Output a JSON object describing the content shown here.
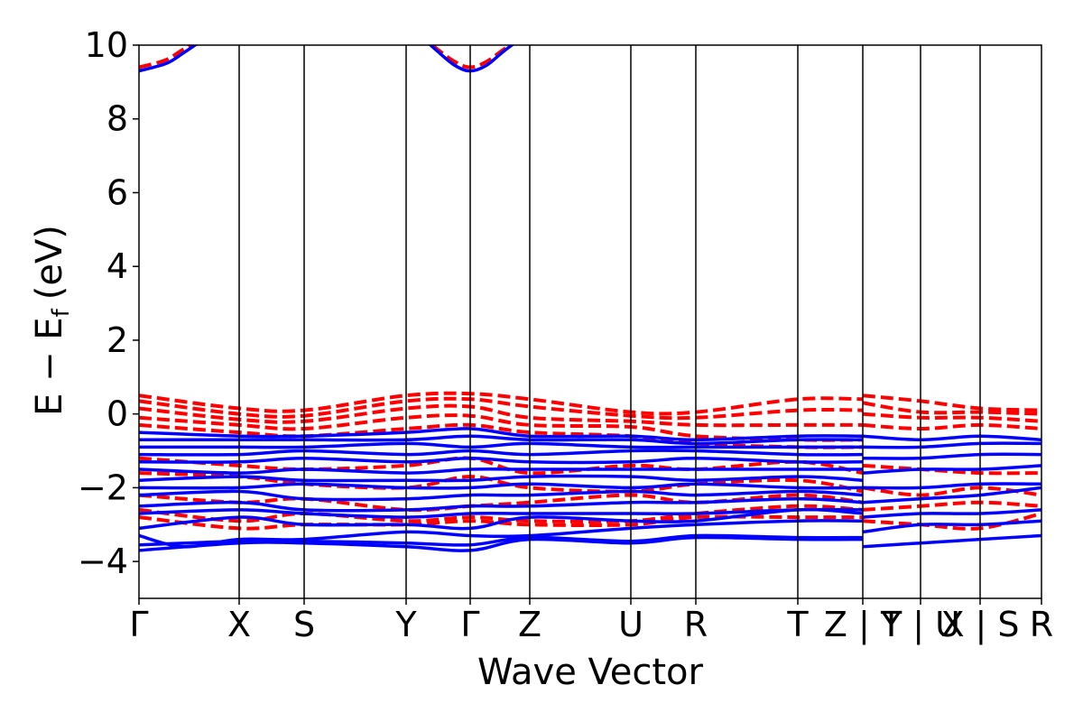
{
  "chart_data": {
    "type": "line",
    "title": "",
    "xlabel": "Wave Vector",
    "ylabel": "E − E",
    "ylabel_subscript": "f",
    "ylabel_unit": "(eV)",
    "ylim": [
      -5,
      10
    ],
    "yticks": [
      -4,
      -2,
      0,
      2,
      4,
      6,
      8,
      10
    ],
    "ytick_labels": [
      "−4",
      "−2",
      "0",
      "2",
      "4",
      "6",
      "8",
      "10"
    ],
    "xlim": [
      0,
      10
    ],
    "kpath": [
      {
        "label": "Γ",
        "x": 0.0
      },
      {
        "label": "X",
        "x": 1.11
      },
      {
        "label": "S",
        "x": 1.83
      },
      {
        "label": "Y",
        "x": 2.96
      },
      {
        "label": "Γ",
        "x": 3.67
      },
      {
        "label": "Z",
        "x": 4.33
      },
      {
        "label": "U",
        "x": 5.45
      },
      {
        "label": "R",
        "x": 6.17
      },
      {
        "label": "T",
        "x": 7.3
      },
      {
        "label": "Z | Y",
        "x": 8.02
      },
      {
        "label": "T | U",
        "x": 8.66
      },
      {
        "label": "X | S",
        "x": 9.32
      },
      {
        "label": "R",
        "x": 10.0
      }
    ],
    "series": [
      {
        "name": "blue solid bands",
        "color": "#0000ff",
        "style": "solid",
        "bands": [
          {
            "x": [
              0,
              0.3,
              0.5,
              0.8
            ],
            "y": [
              9.3,
              9.5,
              9.8,
              10.3
            ]
          },
          {
            "x": [
              3.1,
              3.3,
              3.5,
              3.67,
              3.85,
              4.05,
              4.3
            ],
            "y": [
              10.3,
              9.85,
              9.45,
              9.3,
              9.45,
              9.85,
              10.3
            ]
          },
          {
            "x": [
              0,
              1.11,
              1.83,
              2.96,
              3.67,
              4.33,
              5.45,
              6.17,
              7.3,
              8.02
            ],
            "y": [
              -3.7,
              -3.5,
              -3.5,
              -3.6,
              -3.7,
              -3.4,
              -3.5,
              -3.35,
              -3.4,
              -3.4
            ]
          },
          {
            "x": [
              0,
              1.11,
              1.83,
              2.96,
              3.67,
              4.33,
              5.45,
              6.17,
              7.3,
              8.02
            ],
            "y": [
              -3.55,
              -3.45,
              -3.45,
              -3.5,
              -3.55,
              -3.35,
              -3.45,
              -3.3,
              -3.35,
              -3.35
            ]
          },
          {
            "x": [
              0,
              0.5,
              1.11,
              1.83,
              2.96,
              3.67,
              4.33,
              5.45,
              6.17,
              7.3,
              8.02
            ],
            "y": [
              -3.3,
              -3.6,
              -3.4,
              -3.4,
              -3.2,
              -3.3,
              -3.3,
              -3.1,
              -3.0,
              -2.9,
              -2.9
            ]
          },
          {
            "x": [
              0,
              1.11,
              1.83,
              2.96,
              3.67,
              4.33,
              5.45,
              6.17,
              7.3,
              8.02
            ],
            "y": [
              -3.1,
              -2.8,
              -3.0,
              -3.0,
              -3.1,
              -2.8,
              -2.9,
              -2.9,
              -2.6,
              -2.7
            ]
          },
          {
            "x": [
              0,
              1.11,
              1.83,
              2.96,
              3.67,
              4.33,
              5.45,
              6.17,
              7.3,
              8.02
            ],
            "y": [
              -2.7,
              -2.6,
              -2.7,
              -2.8,
              -2.7,
              -2.7,
              -2.7,
              -2.7,
              -2.6,
              -2.6
            ]
          },
          {
            "x": [
              0,
              1.11,
              1.83,
              2.96,
              3.67,
              4.33,
              5.45,
              6.17,
              7.3,
              8.02
            ],
            "y": [
              -2.5,
              -2.4,
              -2.6,
              -2.6,
              -2.5,
              -2.5,
              -2.4,
              -2.4,
              -2.3,
              -2.4
            ]
          },
          {
            "x": [
              0,
              1.11,
              1.83,
              2.96,
              3.67,
              4.33,
              5.45,
              6.17,
              7.3,
              8.02
            ],
            "y": [
              -2.2,
              -2.1,
              -2.3,
              -2.3,
              -2.2,
              -2.2,
              -2.1,
              -2.2,
              -2.1,
              -2.2
            ]
          },
          {
            "x": [
              0,
              1.11,
              1.83,
              2.96,
              3.67,
              4.33,
              5.45,
              6.17,
              7.3,
              8.02
            ],
            "y": [
              -2.0,
              -2.0,
              -1.9,
              -2.0,
              -2.0,
              -1.9,
              -2.0,
              -1.9,
              -2.0,
              -2.0
            ]
          },
          {
            "x": [
              0,
              1.11,
              1.83,
              2.96,
              3.67,
              4.33,
              5.45,
              6.17,
              7.3,
              8.02
            ],
            "y": [
              -1.8,
              -1.7,
              -1.8,
              -1.8,
              -1.8,
              -1.7,
              -1.7,
              -1.8,
              -1.7,
              -1.8
            ]
          },
          {
            "x": [
              0,
              1.11,
              1.83,
              2.96,
              3.67,
              4.33,
              5.45,
              6.17,
              7.3,
              8.02
            ],
            "y": [
              -1.5,
              -1.6,
              -1.5,
              -1.6,
              -1.5,
              -1.5,
              -1.5,
              -1.5,
              -1.5,
              -1.5
            ]
          },
          {
            "x": [
              0,
              1.11,
              1.83,
              2.96,
              3.67,
              4.33,
              5.45,
              6.17,
              7.3,
              8.02
            ],
            "y": [
              -1.3,
              -1.3,
              -1.2,
              -1.3,
              -1.2,
              -1.3,
              -1.3,
              -1.2,
              -1.3,
              -1.3
            ]
          },
          {
            "x": [
              0,
              1.11,
              1.83,
              2.96,
              3.67,
              4.33,
              5.45,
              6.17,
              7.3,
              8.02
            ],
            "y": [
              -1.1,
              -1.1,
              -1.0,
              -1.1,
              -1.0,
              -1.1,
              -1.0,
              -1.0,
              -1.1,
              -1.1
            ]
          },
          {
            "x": [
              0,
              1.11,
              1.83,
              2.96,
              3.67,
              4.33,
              5.45,
              6.17,
              7.3,
              8.02
            ],
            "y": [
              -0.9,
              -0.9,
              -0.9,
              -0.8,
              -0.9,
              -0.8,
              -0.9,
              -0.9,
              -0.9,
              -0.9
            ]
          },
          {
            "x": [
              0,
              1.11,
              1.83,
              2.96,
              3.67,
              4.33,
              5.45,
              6.17,
              7.3,
              8.02
            ],
            "y": [
              -0.7,
              -0.7,
              -0.7,
              -0.7,
              -0.6,
              -0.7,
              -0.7,
              -0.8,
              -0.7,
              -0.7
            ]
          },
          {
            "x": [
              0,
              1.11,
              1.83,
              2.96,
              3.67,
              4.33,
              5.45,
              6.17,
              7.3,
              8.02
            ],
            "y": [
              -0.5,
              -0.6,
              -0.6,
              -0.5,
              -0.4,
              -0.6,
              -0.6,
              -0.7,
              -0.6,
              -0.6
            ]
          },
          {
            "x": [
              8.02,
              8.66,
              9.32,
              10.0
            ],
            "y": [
              -3.6,
              -3.5,
              -3.4,
              -3.3
            ]
          },
          {
            "x": [
              8.02,
              8.66,
              9.32,
              10.0
            ],
            "y": [
              -3.2,
              -3.0,
              -3.0,
              -2.9
            ]
          },
          {
            "x": [
              8.02,
              8.66,
              9.32,
              10.0
            ],
            "y": [
              -2.8,
              -2.7,
              -2.7,
              -2.6
            ]
          },
          {
            "x": [
              8.02,
              8.66,
              9.32,
              10.0
            ],
            "y": [
              -2.4,
              -2.3,
              -2.2,
              -2.0
            ]
          },
          {
            "x": [
              8.02,
              8.66,
              9.32,
              10.0
            ],
            "y": [
              -2.0,
              -2.0,
              -1.9,
              -1.9
            ]
          },
          {
            "x": [
              8.02,
              8.66,
              9.32,
              10.0
            ],
            "y": [
              -1.6,
              -1.5,
              -1.5,
              -1.4
            ]
          },
          {
            "x": [
              8.02,
              8.66,
              9.32,
              10.0
            ],
            "y": [
              -1.2,
              -1.2,
              -1.1,
              -1.1
            ]
          },
          {
            "x": [
              8.02,
              8.66,
              9.32,
              10.0
            ],
            "y": [
              -0.9,
              -0.9,
              -0.8,
              -0.8
            ]
          },
          {
            "x": [
              8.02,
              8.66,
              9.32,
              10.0
            ],
            "y": [
              -0.6,
              -0.7,
              -0.6,
              -0.7
            ]
          }
        ]
      },
      {
        "name": "red dashed bands",
        "color": "#ff0000",
        "style": "dashed",
        "bands": [
          {
            "x": [
              0,
              0.3,
              0.5,
              0.8
            ],
            "y": [
              9.4,
              9.6,
              9.9,
              10.3
            ]
          },
          {
            "x": [
              3.1,
              3.3,
              3.5,
              3.67,
              3.85,
              4.05,
              4.3
            ],
            "y": [
              10.3,
              9.9,
              9.55,
              9.4,
              9.55,
              9.9,
              10.3
            ]
          },
          {
            "x": [
              0,
              1.11,
              1.83,
              2.96,
              3.67,
              4.33,
              5.45,
              6.17,
              7.3,
              8.02
            ],
            "y": [
              0.5,
              0.15,
              0.1,
              0.5,
              0.55,
              0.4,
              0.05,
              0.05,
              0.4,
              0.4
            ]
          },
          {
            "x": [
              0,
              1.11,
              1.83,
              2.96,
              3.67,
              4.33,
              5.45,
              6.17,
              7.3,
              8.02
            ],
            "y": [
              0.35,
              0.0,
              -0.05,
              0.35,
              0.4,
              0.2,
              -0.05,
              -0.1,
              0.1,
              0.1
            ]
          },
          {
            "x": [
              0,
              1.11,
              1.83,
              2.96,
              3.67,
              4.33,
              5.45,
              6.17,
              7.3,
              8.02
            ],
            "y": [
              0.15,
              -0.15,
              -0.2,
              0.15,
              0.2,
              -0.1,
              -0.2,
              -0.3,
              -0.3,
              -0.3
            ]
          },
          {
            "x": [
              0,
              1.11,
              1.83,
              2.96,
              3.67,
              4.33,
              5.45,
              6.17,
              7.3,
              8.02
            ],
            "y": [
              -0.1,
              -0.3,
              -0.4,
              -0.1,
              -0.05,
              -0.3,
              -0.35,
              -0.6,
              -0.7,
              -0.7
            ]
          },
          {
            "x": [
              0,
              1.11,
              1.83,
              2.96,
              3.67,
              4.33,
              5.45,
              6.17,
              7.3,
              8.02
            ],
            "y": [
              -0.3,
              -0.5,
              -0.6,
              -0.4,
              -0.3,
              -0.5,
              -0.6,
              -0.8,
              -0.9,
              -0.9
            ]
          },
          {
            "x": [
              0,
              1.11,
              1.83,
              2.96,
              3.67,
              4.33,
              5.45,
              6.17,
              7.3,
              8.02
            ],
            "y": [
              -1.2,
              -1.4,
              -1.5,
              -1.4,
              -1.2,
              -1.6,
              -1.4,
              -1.5,
              -1.3,
              -1.6
            ]
          },
          {
            "x": [
              0,
              1.11,
              1.83,
              2.96,
              3.67,
              4.33,
              5.45,
              6.17,
              7.3,
              8.02
            ],
            "y": [
              -1.6,
              -1.7,
              -1.9,
              -2.0,
              -1.7,
              -2.0,
              -2.1,
              -1.9,
              -1.8,
              -2.1
            ]
          },
          {
            "x": [
              0,
              1.11,
              1.83,
              2.96,
              3.67,
              4.33,
              5.45,
              6.17,
              7.3,
              8.02
            ],
            "y": [
              -2.2,
              -2.4,
              -2.3,
              -2.6,
              -2.5,
              -2.4,
              -2.2,
              -2.4,
              -2.2,
              -2.4
            ]
          },
          {
            "x": [
              0,
              1.11,
              1.83,
              2.96,
              3.67,
              4.33,
              5.45,
              6.17,
              7.3,
              8.02
            ],
            "y": [
              -2.6,
              -2.9,
              -2.7,
              -2.9,
              -2.8,
              -2.9,
              -2.9,
              -2.7,
              -2.5,
              -2.6
            ]
          },
          {
            "x": [
              0,
              1.11,
              1.83,
              2.96,
              3.67,
              4.33,
              5.45,
              6.17,
              7.3,
              8.02
            ],
            "y": [
              -2.8,
              -3.1,
              -3.0,
              -3.0,
              -2.9,
              -3.0,
              -3.0,
              -2.8,
              -2.8,
              -2.8
            ]
          },
          {
            "x": [
              8.02,
              8.66,
              9.32,
              10.0
            ],
            "y": [
              0.5,
              0.35,
              0.15,
              0.1
            ]
          },
          {
            "x": [
              8.02,
              8.66,
              9.32,
              10.0
            ],
            "y": [
              0.3,
              0.05,
              0.05,
              0.0
            ]
          },
          {
            "x": [
              8.02,
              8.66,
              9.32,
              10.0
            ],
            "y": [
              0.0,
              -0.1,
              -0.1,
              -0.2
            ]
          },
          {
            "x": [
              8.02,
              8.66,
              9.32,
              10.0
            ],
            "y": [
              -0.3,
              -0.4,
              -0.3,
              -0.4
            ]
          },
          {
            "x": [
              8.02,
              8.66,
              9.32,
              10.0
            ],
            "y": [
              -1.4,
              -1.5,
              -1.6,
              -1.6
            ]
          },
          {
            "x": [
              8.02,
              8.66,
              9.32,
              10.0
            ],
            "y": [
              -2.0,
              -2.2,
              -2.0,
              -2.2
            ]
          },
          {
            "x": [
              8.02,
              8.66,
              9.32,
              10.0
            ],
            "y": [
              -2.6,
              -2.5,
              -2.4,
              -2.5
            ]
          },
          {
            "x": [
              8.02,
              8.66,
              9.32,
              10.0
            ],
            "y": [
              -2.9,
              -3.0,
              -3.1,
              -2.7
            ]
          }
        ]
      }
    ]
  }
}
